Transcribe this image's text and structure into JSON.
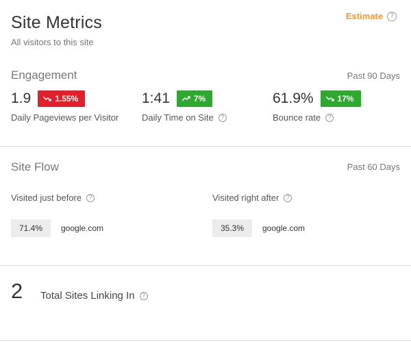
{
  "header": {
    "title": "Site Metrics",
    "subtitle": "All visitors to this site",
    "estimate_label": "Estimate"
  },
  "engagement": {
    "title": "Engagement",
    "period": "Past 90 Days",
    "metrics": [
      {
        "value": "1.9",
        "change": "1.55%",
        "direction": "down",
        "label": "Daily Pageviews per Visitor"
      },
      {
        "value": "1:41",
        "change": "7%",
        "direction": "up",
        "label": "Daily Time on Site"
      },
      {
        "value": "61.9%",
        "change": "17%",
        "direction": "down",
        "label": "Bounce rate"
      }
    ]
  },
  "site_flow": {
    "title": "Site Flow",
    "period": "Past 60 Days",
    "before": {
      "label": "Visited just before",
      "percent": "71.4%",
      "site": "google.com"
    },
    "after": {
      "label": "Visited right after",
      "percent": "35.3%",
      "site": "google.com"
    }
  },
  "linking": {
    "count": "2",
    "label": "Total Sites Linking In"
  },
  "colors": {
    "accent": "#f39a2a",
    "badge_red": "#e0202a",
    "badge_green": "#2ea82e"
  },
  "icons": {
    "help": "question-circle-icon",
    "trend_down": "trend-down-icon",
    "trend_up": "trend-up-icon"
  }
}
